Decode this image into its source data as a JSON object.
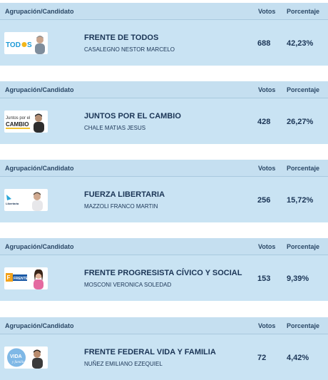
{
  "header": {
    "col_party": "Agrupación/Candidato",
    "col_votes": "Votos",
    "col_pct": "Porcentaje"
  },
  "results": [
    {
      "party": "FRENTE DE TODOS",
      "candidate": "CASALEGNO NESTOR MARCELO",
      "votes": "688",
      "percent": "42,23%",
      "logo_text": "TOD S",
      "logo_icon": "frente-de-todos-logo-icon"
    },
    {
      "party": "JUNTOS POR EL CAMBIO",
      "candidate": "CHALE MATIAS JESUS",
      "votes": "428",
      "percent": "26,27%",
      "logo_text": "Juntos por el CAMBIO",
      "logo_icon": "juntos-por-el-cambio-logo-icon"
    },
    {
      "party": "FUERZA LIBERTARIA",
      "candidate": "MAZZOLI FRANCO MARTIN",
      "votes": "256",
      "percent": "15,72%",
      "logo_text": "Libertaria",
      "logo_icon": "fuerza-libertaria-logo-icon"
    },
    {
      "party": "FRENTE PROGRESISTA CÍVICO Y SOCIAL",
      "candidate": "MOSCONI VERONICA SOLEDAD",
      "votes": "153",
      "percent": "9,39%",
      "logo_text": "FRENTE",
      "logo_icon": "frente-progresista-logo-icon"
    },
    {
      "party": "FRENTE FEDERAL VIDA Y FAMILIA",
      "candidate": "NUÑEZ EMILIANO EZEQUIEL",
      "votes": "72",
      "percent": "4,42%",
      "logo_text": "VIDA",
      "logo_icon": "vida-y-familia-logo-icon"
    }
  ],
  "colors": {
    "header_bg": "#c5dff0",
    "row_bg": "#c9e3f3",
    "text": "#1b3556"
  }
}
